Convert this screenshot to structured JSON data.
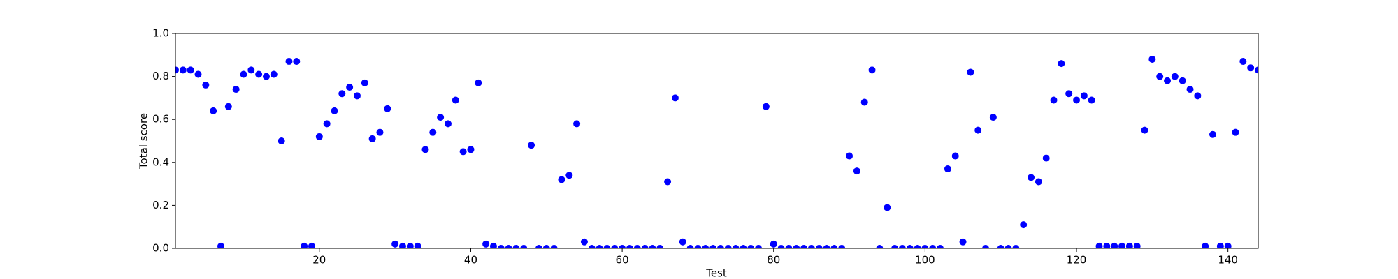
{
  "chart_data": {
    "type": "scatter",
    "x_label": "Test",
    "y_label": "Total score",
    "x": [
      1,
      2,
      3,
      4,
      5,
      6,
      7,
      8,
      9,
      10,
      11,
      12,
      13,
      14,
      15,
      16,
      17,
      18,
      19,
      20,
      21,
      22,
      23,
      24,
      25,
      26,
      27,
      28,
      29,
      30,
      31,
      32,
      33,
      34,
      35,
      36,
      37,
      38,
      39,
      40,
      41,
      42,
      43,
      44,
      45,
      46,
      47,
      48,
      49,
      50,
      51,
      52,
      53,
      54,
      55,
      56,
      57,
      58,
      59,
      60,
      61,
      62,
      63,
      64,
      65,
      66,
      67,
      68,
      69,
      70,
      71,
      72,
      73,
      74,
      75,
      76,
      77,
      78,
      79,
      80,
      81,
      82,
      83,
      84,
      85,
      86,
      87,
      88,
      89,
      90,
      91,
      92,
      93,
      94,
      95,
      96,
      97,
      98,
      99,
      100,
      101,
      102,
      103,
      104,
      105,
      106,
      107,
      108,
      109,
      110,
      111,
      112,
      113,
      114,
      115,
      116,
      117,
      118,
      119,
      120,
      121,
      122,
      123,
      124,
      125,
      126,
      127,
      128,
      129,
      130,
      131,
      132,
      133,
      134,
      135,
      136,
      137,
      138,
      139,
      140,
      141,
      142,
      143,
      144
    ],
    "values": [
      0.83,
      0.83,
      0.83,
      0.81,
      0.76,
      0.64,
      0.01,
      0.66,
      0.74,
      0.81,
      0.83,
      0.81,
      0.8,
      0.81,
      0.5,
      0.87,
      0.87,
      0.01,
      0.01,
      0.52,
      0.58,
      0.64,
      0.72,
      0.75,
      0.71,
      0.77,
      0.51,
      0.54,
      0.65,
      0.02,
      0.01,
      0.01,
      0.01,
      0.46,
      0.54,
      0.61,
      0.58,
      0.69,
      0.45,
      0.46,
      0.77,
      0.02,
      0.01,
      0,
      0,
      0,
      0,
      0.48,
      0,
      0,
      0,
      0.32,
      0.34,
      0.58,
      0.03,
      0,
      0,
      0,
      0,
      0,
      0,
      0,
      0,
      0,
      0,
      0.31,
      0.7,
      0.03,
      0,
      0,
      0,
      0,
      0,
      0,
      0,
      0,
      0,
      0,
      0.66,
      0.02,
      0,
      0,
      0,
      0,
      0,
      0,
      0,
      0,
      0,
      0.43,
      0.36,
      0.68,
      0.83,
      0,
      0.19,
      0,
      0,
      0,
      0,
      0,
      0,
      0,
      0.37,
      0.43,
      0.03,
      0.82,
      0.55,
      0,
      0.61,
      0,
      0,
      0,
      0.11,
      0.33,
      0.31,
      0.42,
      0.69,
      0.86,
      0.72,
      0.69,
      0.71,
      0.69,
      0.01,
      0.01,
      0.01,
      0.01,
      0.01,
      0.01,
      0.55,
      0.88,
      0.8,
      0.78,
      0.8,
      0.78,
      0.74,
      0.71,
      0.01,
      0.53,
      0.01,
      0.01,
      0.54,
      0.87,
      0.84,
      0.83
    ],
    "color": "#0000ff",
    "xlim": [
      1,
      144
    ],
    "ylim": [
      0,
      1
    ],
    "xticks": [
      20,
      40,
      60,
      80,
      100,
      120,
      140
    ],
    "yticks": [
      {
        "value": 0,
        "label": "0.0"
      },
      0.2,
      0.4,
      0.6,
      0.8,
      {
        "value": 1,
        "label": "1.0"
      }
    ],
    "grid": false
  }
}
